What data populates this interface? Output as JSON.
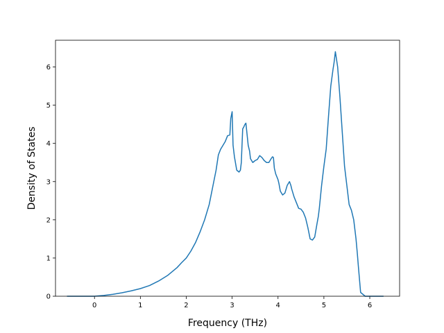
{
  "chart_data": {
    "type": "line",
    "title": "",
    "xlabel": "Frequency (THz)",
    "ylabel": "Density of States",
    "xlim": [
      -0.85,
      6.65
    ],
    "ylim": [
      0,
      6.7
    ],
    "xticks": [
      0,
      1,
      2,
      3,
      4,
      5,
      6
    ],
    "yticks": [
      0,
      1,
      2,
      3,
      4,
      5,
      6
    ],
    "grid": false,
    "legend": "none",
    "series": [
      {
        "color": "#1f77b4",
        "x": [
          -0.6,
          -0.3,
          0.0,
          0.2,
          0.4,
          0.6,
          0.8,
          1.0,
          1.2,
          1.4,
          1.6,
          1.8,
          1.9,
          2.0,
          2.1,
          2.2,
          2.3,
          2.4,
          2.5,
          2.55,
          2.6,
          2.65,
          2.7,
          2.75,
          2.8,
          2.85,
          2.9,
          2.95,
          2.97,
          3.0,
          3.02,
          3.05,
          3.1,
          3.15,
          3.18,
          3.2,
          3.23,
          3.25,
          3.28,
          3.3,
          3.35,
          3.38,
          3.4,
          3.45,
          3.5,
          3.55,
          3.6,
          3.65,
          3.7,
          3.75,
          3.8,
          3.85,
          3.88,
          3.9,
          3.92,
          3.95,
          4.0,
          4.02,
          4.05,
          4.1,
          4.15,
          4.2,
          4.25,
          4.28,
          4.3,
          4.35,
          4.4,
          4.45,
          4.5,
          4.55,
          4.6,
          4.65,
          4.7,
          4.75,
          4.8,
          4.85,
          4.88,
          4.9,
          4.95,
          5.0,
          5.05,
          5.1,
          5.15,
          5.2,
          5.22,
          5.25,
          5.3,
          5.35,
          5.4,
          5.45,
          5.5,
          5.55,
          5.6,
          5.65,
          5.7,
          5.73,
          5.75,
          5.8,
          5.9,
          6.1,
          6.3
        ],
        "y": [
          0,
          0,
          0,
          0.02,
          0.05,
          0.09,
          0.14,
          0.2,
          0.28,
          0.4,
          0.55,
          0.75,
          0.88,
          1.0,
          1.18,
          1.4,
          1.68,
          2.0,
          2.4,
          2.7,
          3.0,
          3.3,
          3.7,
          3.85,
          3.95,
          4.05,
          4.2,
          4.22,
          4.65,
          4.83,
          3.95,
          3.65,
          3.3,
          3.25,
          3.3,
          3.5,
          4.38,
          4.42,
          4.5,
          4.53,
          3.95,
          3.8,
          3.6,
          3.5,
          3.55,
          3.58,
          3.68,
          3.63,
          3.55,
          3.5,
          3.5,
          3.6,
          3.65,
          3.63,
          3.35,
          3.2,
          3.05,
          2.95,
          2.75,
          2.65,
          2.7,
          2.9,
          3.0,
          2.9,
          2.8,
          2.6,
          2.45,
          2.3,
          2.28,
          2.2,
          2.05,
          1.8,
          1.5,
          1.47,
          1.55,
          1.9,
          2.1,
          2.3,
          2.9,
          3.4,
          3.85,
          4.7,
          5.5,
          5.95,
          6.1,
          6.4,
          6.0,
          5.2,
          4.3,
          3.4,
          2.9,
          2.4,
          2.25,
          2.0,
          1.5,
          1.1,
          0.8,
          0.1,
          0,
          0,
          0
        ]
      }
    ]
  }
}
